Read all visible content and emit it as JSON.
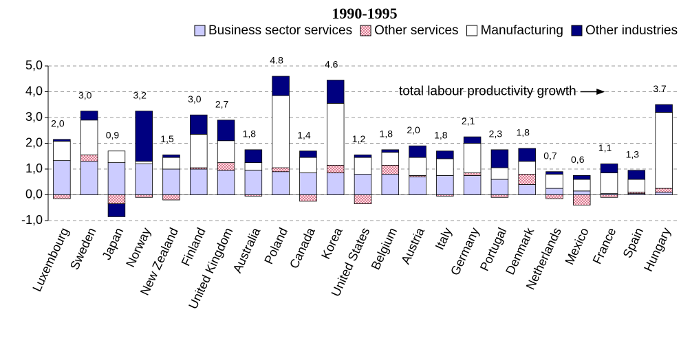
{
  "chart_data": {
    "type": "stacked-bar",
    "title": "1990-1995",
    "categories": [
      "Luxembourg",
      "Sweden",
      "Japan",
      "Norway",
      "New Zealand",
      "Finland",
      "United Kingdom",
      "Australia",
      "Poland",
      "Canada",
      "Korea",
      "United States",
      "Belgium",
      "Austria",
      "Italy",
      "Germany",
      "Portugal",
      "Denmark",
      "Netherlands",
      "Mexico",
      "France",
      "Spain",
      "Hungary"
    ],
    "series": [
      {
        "name": "Business sector services",
        "color": "#ccccff",
        "values": [
          1.33,
          1.3,
          1.25,
          1.2,
          1.0,
          1.0,
          0.95,
          0.95,
          0.9,
          0.85,
          0.85,
          0.8,
          0.8,
          0.7,
          0.75,
          0.75,
          0.6,
          0.4,
          0.25,
          0.15,
          0.05,
          0.05,
          0.1
        ]
      },
      {
        "name": "Other services",
        "color": "#ff9999",
        "values": [
          -0.15,
          0.25,
          -0.35,
          -0.1,
          -0.2,
          0.05,
          0.3,
          -0.05,
          0.15,
          -0.25,
          0.3,
          -0.35,
          0.35,
          0.05,
          -0.05,
          0.1,
          -0.1,
          0.4,
          -0.15,
          -0.4,
          -0.1,
          0.05,
          0.15
        ]
      },
      {
        "name": "Manufacturing",
        "color": "#ffffff",
        "values": [
          0.75,
          1.35,
          0.45,
          0.1,
          0.45,
          1.3,
          0.85,
          0.3,
          2.8,
          0.6,
          2.4,
          0.65,
          0.5,
          0.7,
          0.65,
          1.15,
          0.45,
          0.5,
          0.55,
          0.45,
          0.8,
          0.5,
          2.95
        ]
      },
      {
        "name": "Other industries",
        "color": "#000080",
        "values": [
          0.07,
          0.35,
          -0.5,
          1.95,
          0.1,
          0.75,
          0.8,
          0.5,
          0.75,
          0.25,
          0.9,
          0.1,
          0.1,
          0.45,
          0.3,
          0.25,
          0.7,
          0.5,
          0.1,
          0.15,
          0.35,
          0.35,
          0.3
        ]
      }
    ],
    "totals": {
      "values": [
        2.0,
        3.0,
        0.9,
        3.2,
        1.5,
        3.0,
        2.7,
        1.8,
        4.8,
        1.4,
        4.6,
        1.2,
        1.8,
        2.0,
        1.8,
        2.1,
        2.3,
        1.8,
        0.7,
        0.6,
        1.1,
        1.3,
        3.7
      ],
      "value_labels": [
        "2,0",
        "3,0",
        "0,9",
        "3,2",
        "1,5",
        "3,0",
        "2,7",
        "1,8",
        "4.8",
        "1,4",
        "4.6",
        "1,2",
        "1,8",
        "2,0",
        "1,8",
        "2,1",
        "2,3",
        "1,8",
        "0,7",
        "0,6",
        "1,1",
        "1,3",
        "3.7"
      ]
    },
    "annotation": "total labour productivity growth",
    "ylim": [
      -1,
      5
    ],
    "yticks": [
      {
        "value": -1,
        "label": "-1,0"
      },
      {
        "value": 0,
        "label": "0,0"
      },
      {
        "value": 1,
        "label": "1,0"
      },
      {
        "value": 2,
        "label": "2,0"
      },
      {
        "value": 3,
        "label": "3,0"
      },
      {
        "value": 4,
        "label": "4,0"
      },
      {
        "value": 5,
        "label": "5,0"
      }
    ],
    "grid": true,
    "legend": "top"
  }
}
